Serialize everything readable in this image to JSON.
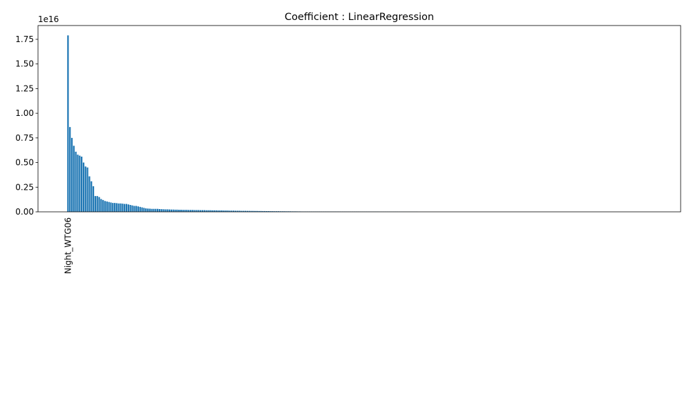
{
  "chart_data": {
    "type": "bar",
    "title": "Coefficient : LinearRegression",
    "y_offset_label": "1e16",
    "color": "#1f77b4",
    "ylim": [
      0,
      1.89e+16
    ],
    "yticks": [
      {
        "value": 0,
        "label": "0.00"
      },
      {
        "value": 2500000000000000.0,
        "label": "0.25"
      },
      {
        "value": 5000000000000000.0,
        "label": "0.50"
      },
      {
        "value": 7500000000000000.0,
        "label": "0.75"
      },
      {
        "value": 1e+16,
        "label": "1.00"
      },
      {
        "value": 1.25e+16,
        "label": "1.25"
      },
      {
        "value": 1.5e+16,
        "label": "1.50"
      },
      {
        "value": 1.75e+16,
        "label": "1.75"
      }
    ],
    "categories": [
      "Night_WTG06",
      null,
      null,
      null,
      null,
      null,
      null,
      null,
      null,
      null,
      null,
      null,
      null,
      null,
      null,
      null,
      null,
      null,
      null,
      null,
      null,
      null,
      null,
      null,
      null,
      null,
      null,
      null,
      null,
      null,
      null,
      null,
      null,
      null,
      null,
      null,
      null,
      null,
      null,
      null,
      null,
      null,
      null,
      null,
      null,
      null,
      null,
      null,
      null,
      null,
      null,
      null,
      null,
      null,
      null,
      null,
      null,
      null,
      null,
      null,
      null,
      null,
      null,
      null,
      null,
      null,
      null,
      null,
      null,
      null,
      null,
      null,
      null,
      null,
      null,
      null,
      null,
      null,
      null,
      null,
      null,
      null,
      null,
      null,
      null,
      null,
      null,
      null,
      null,
      null,
      null,
      null,
      null,
      null,
      null,
      null,
      null,
      null,
      null,
      null,
      null,
      null,
      null,
      null,
      null,
      null,
      null,
      null,
      null,
      null,
      null,
      null,
      null,
      null,
      null,
      null,
      null,
      null,
      null,
      null,
      null,
      null,
      null,
      null,
      null,
      null,
      null,
      null,
      null,
      null,
      null,
      null,
      null,
      null,
      null,
      null,
      null,
      null,
      null,
      null,
      null,
      null,
      null,
      null,
      null,
      null,
      null,
      null,
      null,
      null,
      null,
      null,
      null,
      null,
      null,
      null,
      null,
      null,
      null,
      null,
      null,
      null,
      null,
      null,
      null,
      null,
      null,
      null,
      null,
      null,
      null,
      null,
      null,
      null,
      null,
      null,
      null,
      null,
      null,
      null,
      null,
      null,
      null,
      null,
      null,
      null,
      null,
      null,
      null,
      null,
      null,
      null,
      null,
      null,
      null,
      null,
      null,
      null,
      null,
      null,
      null,
      null,
      null,
      null,
      null,
      null,
      null,
      null,
      null,
      null,
      null,
      null,
      null,
      null,
      null,
      null,
      null,
      null,
      null,
      null,
      null,
      null,
      null,
      null,
      null,
      null,
      null,
      null,
      null,
      null,
      null,
      null,
      null,
      null,
      null,
      null,
      null,
      null,
      null,
      null,
      null,
      null,
      null,
      null,
      null,
      null,
      null,
      null,
      null,
      null,
      null,
      null,
      null,
      null,
      null,
      null,
      null,
      null,
      null,
      null,
      null,
      null,
      null,
      null,
      null,
      null,
      null,
      null,
      null,
      null,
      null,
      null,
      null,
      null,
      null,
      null,
      null,
      null,
      null,
      null,
      null,
      null,
      null,
      null,
      null,
      null,
      null,
      null,
      null,
      null,
      null,
      null,
      null,
      null,
      null,
      null,
      null,
      null,
      null,
      null
    ],
    "values": [
      1.79e+16,
      8600000000000000.0,
      7500000000000000.0,
      6700000000000000.0,
      6100000000000000.0,
      5800000000000000.0,
      5700000000000000.0,
      5600000000000000.0,
      5000000000000000.0,
      4600000000000000.0,
      4500000000000000.0,
      3600000000000000.0,
      3100000000000000.0,
      2600000000000000.0,
      1600000000000000.0,
      1600000000000000.0,
      1500000000000000.0,
      1300000000000000.0,
      1200000000000000.0,
      1100000000000000.0,
      1050000000000000.0,
      1000000000000000.0,
      950000000000000.0,
      900000000000000.0,
      900000000000000.0,
      880000000000000.0,
      850000000000000.0,
      850000000000000.0,
      830000000000000.0,
      800000000000000.0,
      800000000000000.0,
      750000000000000.0,
      700000000000000.0,
      650000000000000.0,
      600000000000000.0,
      600000000000000.0,
      550000000000000.0,
      500000000000000.0,
      450000000000000.0,
      400000000000000.0,
      350000000000000.0,
      330000000000000.0,
      320000000000000.0,
      300000000000000.0,
      300000000000000.0,
      300000000000000.0,
      300000000000000.0,
      280000000000000.0,
      270000000000000.0,
      260000000000000.0,
      250000000000000.0,
      250000000000000.0,
      240000000000000.0,
      230000000000000.0,
      230000000000000.0,
      220000000000000.0,
      220000000000000.0,
      210000000000000.0,
      210000000000000.0,
      200000000000000.0,
      200000000000000.0,
      200000000000000.0,
      190000000000000.0,
      190000000000000.0,
      190000000000000.0,
      180000000000000.0,
      180000000000000.0,
      180000000000000.0,
      170000000000000.0,
      170000000000000.0,
      170000000000000.0,
      160000000000000.0,
      160000000000000.0,
      160000000000000.0,
      150000000000000.0,
      150000000000000.0,
      150000000000000.0,
      140000000000000.0,
      140000000000000.0,
      140000000000000.0,
      130000000000000.0,
      130000000000000.0,
      130000000000000.0,
      120000000000000.0,
      120000000000000.0,
      120000000000000.0,
      110000000000000.0,
      110000000000000.0,
      110000000000000.0,
      100000000000000.0,
      100000000000000.0,
      100000000000000.0,
      95000000000000.0,
      95000000000000.0,
      90000000000000.0,
      90000000000000.0,
      85000000000000.0,
      85000000000000.0,
      80000000000000.0,
      80000000000000.0,
      75000000000000.0,
      75000000000000.0,
      70000000000000.0,
      70000000000000.0,
      65000000000000.0,
      65000000000000.0,
      60000000000000.0,
      60000000000000.0,
      60000000000000.0,
      55000000000000.0,
      55000000000000.0,
      55000000000000.0,
      50000000000000.0,
      50000000000000.0,
      50000000000000.0,
      45000000000000.0,
      45000000000000.0,
      45000000000000.0,
      40000000000000.0,
      40000000000000.0,
      35000000000000.0,
      35000000000000.0,
      35000000000000.0,
      35000000000000.0,
      35000000000000.0,
      35000000000000.0,
      35000000000000.0,
      35000000000000.0,
      35000000000000.0,
      35000000000000.0,
      30000000000000.0,
      30000000000000.0,
      30000000000000.0,
      30000000000000.0,
      30000000000000.0,
      30000000000000.0,
      30000000000000.0,
      30000000000000.0,
      30000000000000.0,
      30000000000000.0,
      25000000000000.0,
      25000000000000.0,
      25000000000000.0,
      25000000000000.0,
      25000000000000.0,
      25000000000000.0,
      25000000000000.0,
      25000000000000.0,
      25000000000000.0,
      25000000000000.0,
      20000000000000.0,
      20000000000000.0,
      20000000000000.0,
      20000000000000.0,
      20000000000000.0,
      20000000000000.0,
      20000000000000.0,
      20000000000000.0,
      20000000000000.0,
      20000000000000.0,
      15000000000000.0,
      15000000000000.0,
      15000000000000.0,
      15000000000000.0,
      15000000000000.0,
      15000000000000.0,
      15000000000000.0,
      15000000000000.0,
      15000000000000.0,
      15000000000000.0,
      10000000000000.0,
      10000000000000.0,
      10000000000000.0,
      10000000000000.0,
      10000000000000.0,
      10000000000000.0,
      10000000000000.0,
      10000000000000.0,
      10000000000000.0,
      10000000000000.0,
      0,
      0,
      0,
      0,
      0,
      0,
      0,
      0,
      0,
      0,
      0,
      0,
      0,
      0,
      0,
      0,
      0,
      0,
      0,
      0,
      0,
      0,
      0,
      0,
      0,
      0,
      0,
      0,
      0,
      0,
      0,
      0,
      0,
      0,
      0,
      0,
      0,
      0,
      0,
      0,
      0,
      0,
      0,
      0,
      0,
      0,
      0,
      0,
      0,
      0,
      0,
      0,
      0,
      0,
      0,
      0,
      0,
      0,
      0,
      0,
      0,
      0,
      0,
      0,
      0,
      0,
      0,
      0,
      0,
      0,
      0,
      0,
      0,
      0,
      0,
      0,
      0,
      0,
      0,
      0,
      0,
      0,
      0,
      0,
      0,
      0,
      0,
      0,
      0,
      0,
      0,
      0,
      0,
      0,
      0,
      0,
      0,
      0,
      0,
      0,
      0,
      0,
      0,
      0,
      0,
      0,
      0,
      0,
      0,
      0,
      0,
      0,
      0,
      0,
      0,
      0,
      0,
      0,
      0,
      0
    ]
  }
}
